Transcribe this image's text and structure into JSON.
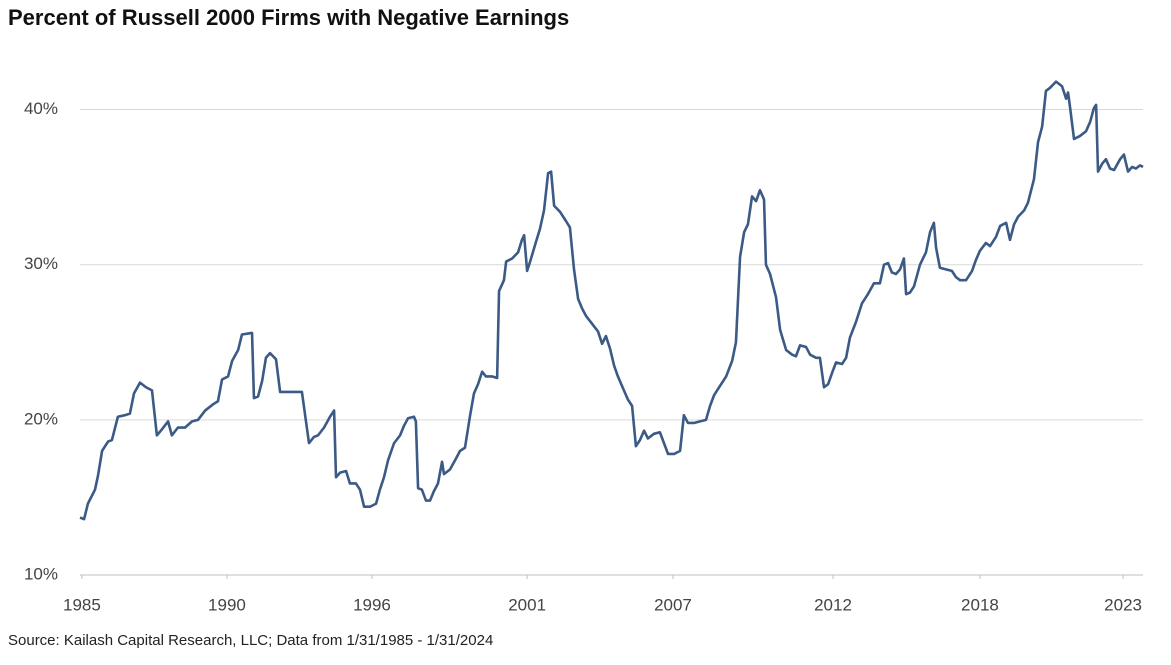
{
  "chart_data": {
    "type": "line",
    "title": "Percent of Russell 2000 Firms with Negative Earnings",
    "source": "Source: Kailash Capital Research, LLC; Data from 1/31/1985 - 1/31/2024",
    "color": "#3b5a85",
    "grid": true,
    "xlim": [
      1985,
      2024.1
    ],
    "ylim": [
      10,
      43
    ],
    "yticks": [
      {
        "value": 10,
        "label": "10%"
      },
      {
        "value": 20,
        "label": "20%"
      },
      {
        "value": 30,
        "label": "30%"
      },
      {
        "value": 40,
        "label": "40%"
      }
    ],
    "xticks": [
      {
        "value": 1985.07,
        "label": "1985"
      },
      {
        "value": 1990.39,
        "label": "1990"
      },
      {
        "value": 1995.71,
        "label": "1996"
      },
      {
        "value": 2001.4,
        "label": "2001"
      },
      {
        "value": 2006.75,
        "label": "2007"
      },
      {
        "value": 2012.62,
        "label": "2012"
      },
      {
        "value": 2018.01,
        "label": "2018"
      },
      {
        "value": 2023.26,
        "label": "2023"
      }
    ],
    "x": [
      1985.0,
      1985.15,
      1985.29,
      1985.55,
      1985.66,
      1985.81,
      1986.03,
      1986.17,
      1986.39,
      1986.65,
      1986.83,
      1986.98,
      1987.2,
      1987.42,
      1987.64,
      1987.82,
      1988.01,
      1988.23,
      1988.37,
      1988.59,
      1988.85,
      1989.11,
      1989.33,
      1989.59,
      1989.88,
      1990.06,
      1990.21,
      1990.43,
      1990.58,
      1990.8,
      1990.94,
      1991.31,
      1991.38,
      1991.53,
      1991.68,
      1991.82,
      1991.97,
      1992.19,
      1992.34,
      1992.63,
      1992.89,
      1993.14,
      1993.25,
      1993.4,
      1993.58,
      1993.73,
      1993.95,
      1994.17,
      1994.32,
      1994.39,
      1994.54,
      1994.76,
      1994.9,
      1995.12,
      1995.27,
      1995.42,
      1995.64,
      1995.86,
      1996.0,
      1996.15,
      1996.3,
      1996.52,
      1996.74,
      1996.88,
      1997.03,
      1997.25,
      1997.32,
      1997.4,
      1997.54,
      1997.69,
      1997.84,
      1997.98,
      1998.13,
      1998.28,
      1998.35,
      1998.57,
      1998.79,
      1998.94,
      1999.12,
      1999.31,
      1999.45,
      1999.6,
      1999.75,
      1999.89,
      2000.11,
      2000.3,
      2000.37,
      2000.55,
      2000.63,
      2000.85,
      2001.07,
      2001.21,
      2001.29,
      2001.4,
      2001.51,
      2001.73,
      2001.87,
      2002.02,
      2002.17,
      2002.28,
      2002.39,
      2002.61,
      2002.83,
      2002.97,
      2003.12,
      2003.27,
      2003.41,
      2003.56,
      2003.78,
      2004.0,
      2004.15,
      2004.29,
      2004.44,
      2004.59,
      2004.73,
      2004.95,
      2005.1,
      2005.25,
      2005.39,
      2005.54,
      2005.69,
      2005.83,
      2006.05,
      2006.27,
      2006.42,
      2006.57,
      2006.79,
      2007.01,
      2007.15,
      2007.3,
      2007.52,
      2007.74,
      2007.96,
      2008.11,
      2008.26,
      2008.48,
      2008.7,
      2008.92,
      2009.06,
      2009.21,
      2009.36,
      2009.5,
      2009.65,
      2009.8,
      2009.94,
      2010.09,
      2010.16,
      2010.31,
      2010.53,
      2010.68,
      2010.9,
      2011.12,
      2011.26,
      2011.41,
      2011.63,
      2011.78,
      2012.0,
      2012.14,
      2012.29,
      2012.44,
      2012.58,
      2012.73,
      2012.95,
      2013.1,
      2013.24,
      2013.46,
      2013.68,
      2013.9,
      2014.12,
      2014.34,
      2014.49,
      2014.64,
      2014.78,
      2014.93,
      2015.08,
      2015.22,
      2015.3,
      2015.44,
      2015.59,
      2015.81,
      2016.03,
      2016.18,
      2016.32,
      2016.4,
      2016.54,
      2016.76,
      2016.98,
      2017.13,
      2017.28,
      2017.5,
      2017.72,
      2017.86,
      2018.01,
      2018.23,
      2018.38,
      2018.6,
      2018.75,
      2018.97,
      2019.11,
      2019.26,
      2019.41,
      2019.63,
      2019.77,
      2019.99,
      2020.14,
      2020.29,
      2020.43,
      2020.58,
      2020.8,
      2021.02,
      2021.17,
      2021.24,
      2021.31,
      2021.46,
      2021.68,
      2021.9,
      2022.05,
      2022.19,
      2022.27,
      2022.34,
      2022.49,
      2022.63,
      2022.78,
      2022.93,
      2023.15,
      2023.29,
      2023.44,
      2023.59,
      2023.73,
      2023.88,
      2023.99
    ],
    "values": [
      13.7,
      13.6,
      14.6,
      15.5,
      16.4,
      18.0,
      18.6,
      18.7,
      20.2,
      20.3,
      20.4,
      21.7,
      22.4,
      22.1,
      21.9,
      19.0,
      19.4,
      19.9,
      19.0,
      19.5,
      19.5,
      19.9,
      20.0,
      20.6,
      21.0,
      21.2,
      22.6,
      22.8,
      23.8,
      24.5,
      25.5,
      25.6,
      21.4,
      21.5,
      22.5,
      24.0,
      24.3,
      23.9,
      21.8,
      21.8,
      21.8,
      21.8,
      20.4,
      18.5,
      18.9,
      19.0,
      19.5,
      20.2,
      20.6,
      16.3,
      16.6,
      16.7,
      15.9,
      15.9,
      15.5,
      14.4,
      14.4,
      14.6,
      15.5,
      16.3,
      17.4,
      18.5,
      19.0,
      19.6,
      20.1,
      20.2,
      19.9,
      15.6,
      15.5,
      14.8,
      14.8,
      15.4,
      15.9,
      17.3,
      16.5,
      16.8,
      17.5,
      18.0,
      18.2,
      20.3,
      21.7,
      22.3,
      23.1,
      22.8,
      22.8,
      22.7,
      28.3,
      29.0,
      30.2,
      30.4,
      30.8,
      31.6,
      31.9,
      29.6,
      30.2,
      31.5,
      32.3,
      33.5,
      35.9,
      36.0,
      33.8,
      33.4,
      32.8,
      32.4,
      29.7,
      27.8,
      27.2,
      26.7,
      26.2,
      25.7,
      24.9,
      25.4,
      24.6,
      23.5,
      22.8,
      21.9,
      21.3,
      20.9,
      18.3,
      18.7,
      19.3,
      18.8,
      19.1,
      19.2,
      18.5,
      17.8,
      17.8,
      18.0,
      20.3,
      19.8,
      19.8,
      19.9,
      20.0,
      20.9,
      21.6,
      22.2,
      22.8,
      23.8,
      25.0,
      30.5,
      32.1,
      32.6,
      34.4,
      34.1,
      34.8,
      34.2,
      30.0,
      29.4,
      27.9,
      25.8,
      24.5,
      24.2,
      24.1,
      24.8,
      24.7,
      24.2,
      24.0,
      24.0,
      22.1,
      22.3,
      23.0,
      23.7,
      23.6,
      24.0,
      25.3,
      26.3,
      27.5,
      28.1,
      28.8,
      28.8,
      30.0,
      30.1,
      29.5,
      29.4,
      29.7,
      30.4,
      28.1,
      28.2,
      28.6,
      30.0,
      30.8,
      32.1,
      32.7,
      31.1,
      29.8,
      29.7,
      29.6,
      29.2,
      29.0,
      29.0,
      29.6,
      30.3,
      30.9,
      31.4,
      31.2,
      31.8,
      32.5,
      32.7,
      31.6,
      32.6,
      33.1,
      33.5,
      34.0,
      35.5,
      37.9,
      38.9,
      41.2,
      41.4,
      41.8,
      41.5,
      40.7,
      41.1,
      40.2,
      38.1,
      38.3,
      38.6,
      39.2,
      40.1,
      40.3,
      36.0,
      36.5,
      36.8,
      36.2,
      36.1,
      36.8,
      37.1,
      36.0,
      36.3,
      36.2,
      36.4,
      36.3
    ]
  }
}
